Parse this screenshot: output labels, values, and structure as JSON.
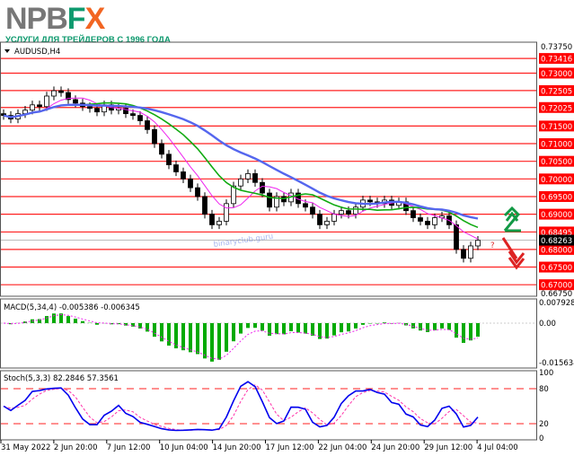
{
  "logo": {
    "letters_gray": "NPB",
    "letters_green": "F",
    "letters_orange": "X",
    "tagline": "УСЛУГИ ДЛЯ ТРЕЙДЕРОВ С 1996 ГОДА"
  },
  "watermark": "binaryclub.guru",
  "colors": {
    "level": "#ff2020",
    "label_bg": "#ff0000",
    "up": "#119944",
    "down": "#dd2222",
    "ma_fast": "#ee22ee",
    "ma_mid": "#11aa11",
    "ma_slow": "#5566ee",
    "macd": "#00aa00",
    "stoch_main": "#0000ee",
    "stoch_signal": "#ff33aa"
  },
  "chart_data": {
    "type": "candlestick",
    "symbol_label": "AUDUSD,H4",
    "ylim": [
      0.6675,
      0.7375
    ],
    "closes": [
      0.718,
      0.717,
      0.7185,
      0.7195,
      0.721,
      0.7205,
      0.7235,
      0.725,
      0.7245,
      0.7225,
      0.7215,
      0.7205,
      0.72,
      0.719,
      0.721,
      0.7195,
      0.72,
      0.7185,
      0.718,
      0.7165,
      0.714,
      0.71,
      0.707,
      0.704,
      0.702,
      0.7,
      0.6975,
      0.695,
      0.69,
      0.687,
      0.688,
      0.693,
      0.698,
      0.7,
      0.7015,
      0.699,
      0.696,
      0.692,
      0.695,
      0.6935,
      0.696,
      0.693,
      0.692,
      0.69,
      0.687,
      0.688,
      0.69,
      0.691,
      0.69,
      0.692,
      0.694,
      0.6935,
      0.693,
      0.694,
      0.6925,
      0.6935,
      0.691,
      0.689,
      0.688,
      0.687,
      0.689,
      0.6895,
      0.687,
      0.68,
      0.6775,
      0.681,
      0.6826
    ],
    "levels": [
      "0.73416",
      "0.73000",
      "0.72505",
      "0.72025",
      "0.71500",
      "0.71000",
      "0.70500",
      "0.70000",
      "0.69500",
      "0.69000",
      "0.68495",
      "0.68000",
      "0.67500",
      "0.67000"
    ],
    "axis_labels": [
      "0.73750",
      "0.66750"
    ],
    "current_price": "0.68263",
    "x_labels": [
      "31 May 2022",
      "2 Jun 20:00",
      "7 Jun 12:00",
      "10 Jun 04:00",
      "14 Jun 20:00",
      "17 Jun 12:00",
      "22 Jun 04:00",
      "24 Jun 20:00",
      "29 Jun 12:00",
      "4 Jul 04:00"
    ],
    "macd": {
      "label": "MACD(5,34,4) -0.005386 -0.006345",
      "axis": [
        "0.007928",
        "0.00",
        "-0.015634"
      ]
    },
    "stoch": {
      "label": "Stoch(5,3,3) 82.2846 57.3561",
      "axis": [
        "100",
        "80",
        "20",
        "0"
      ]
    },
    "annotations": {
      "up_arrow": "up",
      "question": "?",
      "down_arrow": "down"
    }
  }
}
